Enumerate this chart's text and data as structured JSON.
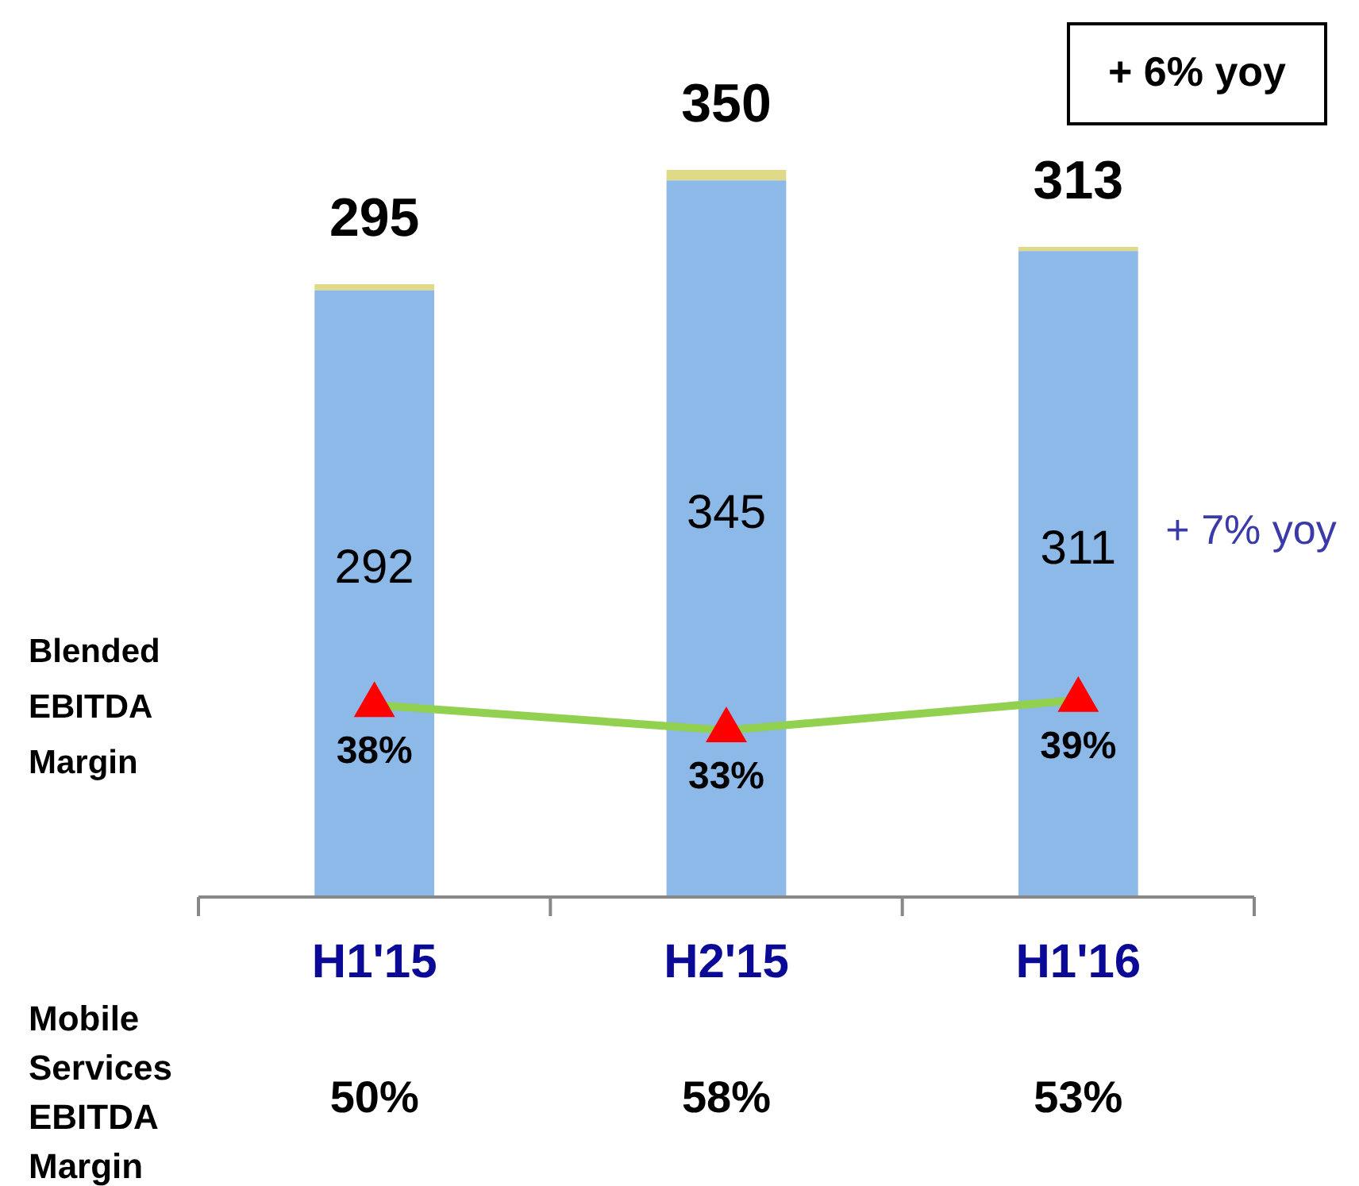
{
  "chart_data": {
    "type": "bar",
    "stacked": true,
    "categories": [
      "H1'15",
      "H2'15",
      "H1'16"
    ],
    "series": [
      {
        "color": "#8db9e8",
        "values": [
          292,
          345,
          311
        ],
        "value_labels": [
          "292",
          "345",
          "311"
        ]
      },
      {
        "color": "#e0da88",
        "values": [
          3,
          5,
          2
        ]
      },
      {
        "type": "line",
        "axis": "y2",
        "name": "Blended EBITDA Margin",
        "color": "#92d050",
        "marker": "triangle",
        "values": [
          38,
          33,
          39
        ],
        "value_labels": [
          "38%",
          "33%",
          "39%"
        ]
      }
    ],
    "totals": [
      "295",
      "350",
      "313"
    ],
    "annotations": [
      "+ 6% yoy",
      "+ 7% yoy",
      "Mobile Services EBITDA Margin",
      "50%",
      "58%",
      "53%"
    ]
  }
}
